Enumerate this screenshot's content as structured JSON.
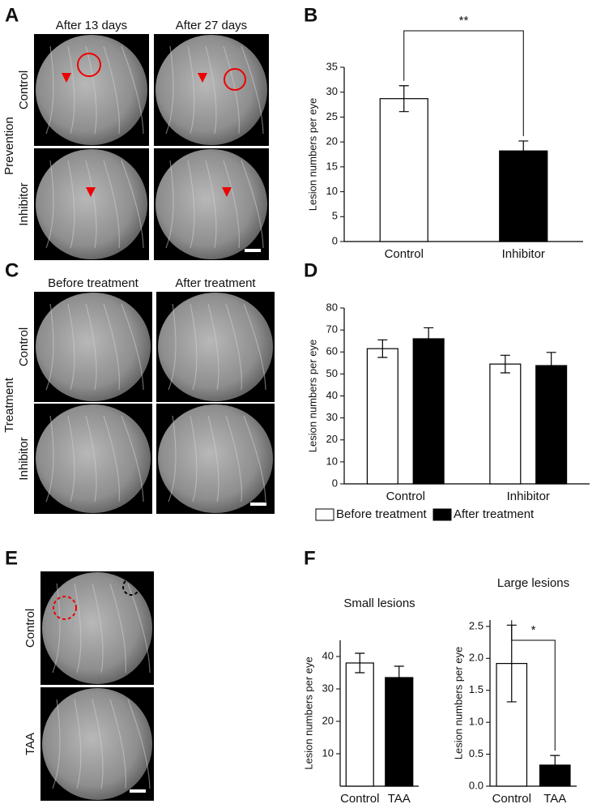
{
  "image_panels": [
    {
      "label": "A",
      "columns": [
        "After 13 days",
        "After 27 days"
      ],
      "rows": [
        "Control",
        "Inhibitor"
      ],
      "group": "Prevention"
    },
    {
      "label": "C",
      "columns": [
        "Before treatment",
        "After treatment"
      ],
      "rows": [
        "Control",
        "Inhibitor"
      ],
      "group": "Treatment"
    },
    {
      "label": "E",
      "rows": [
        "Control",
        "TAA"
      ]
    }
  ],
  "chart_data": [
    {
      "type": "bar",
      "panel": "B",
      "ylabel": "Lesion numbers per eye",
      "categories": [
        "Control",
        "Inhibitor"
      ],
      "values": [
        28.7,
        18.2
      ],
      "errors": [
        2.6,
        2.0
      ],
      "colors": [
        "#ffffff",
        "#000000"
      ],
      "ylim": [
        0,
        35
      ],
      "yticks": [
        0,
        5,
        10,
        15,
        20,
        25,
        30,
        35
      ],
      "annotations": [
        {
          "text": "**",
          "between": [
            0,
            1
          ]
        }
      ]
    },
    {
      "type": "bar",
      "panel": "D",
      "ylabel": "Lesion numbers per eye",
      "categories": [
        "Control",
        "Inhibitor"
      ],
      "series": [
        {
          "name": "Before treatment",
          "color": "#ffffff",
          "values": [
            61.5,
            54.5
          ],
          "errors": [
            4,
            4
          ]
        },
        {
          "name": "After treatment",
          "color": "#000000",
          "values": [
            66,
            53.8
          ],
          "errors": [
            5,
            6
          ]
        }
      ],
      "ylim": [
        0,
        80
      ],
      "yticks": [
        0,
        10,
        20,
        30,
        40,
        50,
        60,
        70,
        80
      ],
      "legend": "bottom"
    },
    {
      "type": "bar",
      "panel": "F",
      "title": "Small lesions",
      "ylabel": "Lesion numbers per eye",
      "categories": [
        "Control",
        "TAA"
      ],
      "values": [
        38,
        33.5
      ],
      "errors": [
        3,
        3.5
      ],
      "colors": [
        "#ffffff",
        "#000000"
      ],
      "ylim": [
        0,
        45
      ],
      "yticks": [
        10,
        20,
        30,
        40
      ]
    },
    {
      "type": "bar",
      "title": "Large lesions",
      "ylabel": "Lesion numbers per eye",
      "categories": [
        "Control",
        "TAA"
      ],
      "values": [
        1.92,
        0.33
      ],
      "errors": [
        0.6,
        0.15
      ],
      "colors": [
        "#ffffff",
        "#000000"
      ],
      "ylim": [
        0,
        2.6
      ],
      "yticks": [
        {
          "value": 0,
          "label": "0.0"
        },
        0.5,
        {
          "value": 1,
          "label": "1.0"
        },
        1.5,
        {
          "value": 2,
          "label": "2.0"
        },
        2.5
      ],
      "annotations": [
        {
          "text": "*",
          "between": [
            0,
            1
          ]
        }
      ]
    }
  ]
}
